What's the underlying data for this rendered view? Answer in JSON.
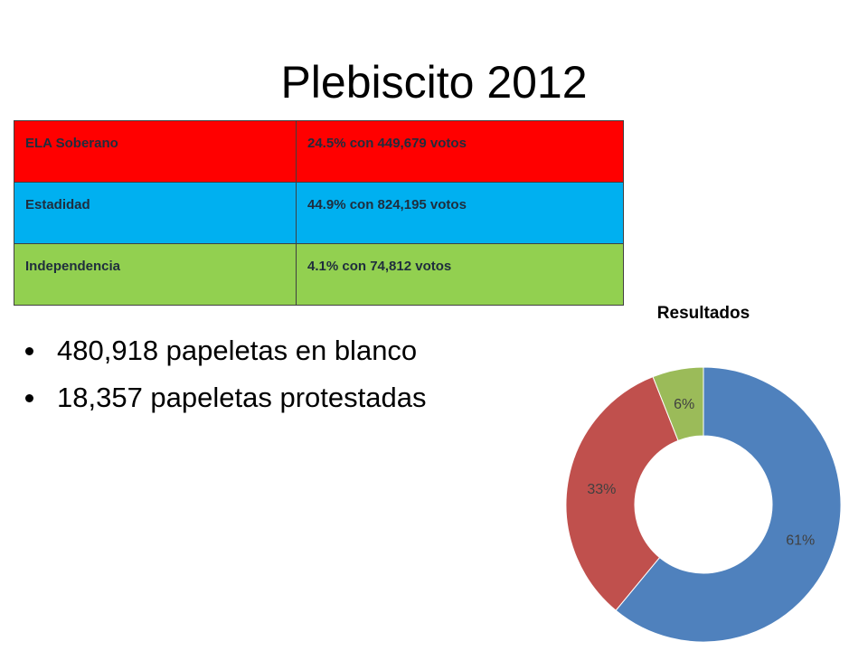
{
  "slide": {
    "title": "Plebiscito 2012"
  },
  "table": {
    "rows": [
      {
        "option": "ELA Soberano",
        "result": "24.5% con 449,679 votos",
        "color": "#ff0000"
      },
      {
        "option": "Estadidad",
        "result": "44.9% con 824,195 votos",
        "color": "#00b0f0"
      },
      {
        "option": "Independencia",
        "result": "4.1% con 74,812 votos",
        "color": "#92d050"
      }
    ]
  },
  "bullets": [
    "480,918 papeletas en blanco",
    "18,357 papeletas protestadas"
  ],
  "chart_data": {
    "type": "pie",
    "style": "donut",
    "title": "Resultados",
    "slices": [
      {
        "label": "61%",
        "value": 61,
        "color": "#4f81bd"
      },
      {
        "label": "33%",
        "value": 33,
        "color": "#c0504d"
      },
      {
        "label": "6%",
        "value": 6,
        "color": "#9bbb59"
      }
    ],
    "legend": "none"
  }
}
